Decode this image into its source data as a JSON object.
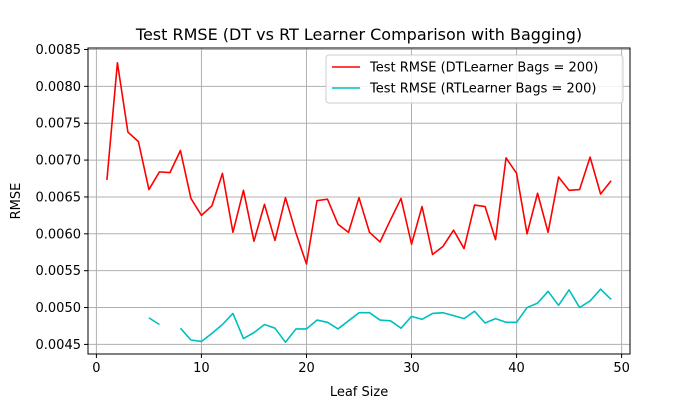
{
  "chart_data": {
    "type": "line",
    "title": "Test RMSE (DT vs RT Learner Comparison with Bagging)",
    "xlabel": "Leaf Size",
    "ylabel": "RMSE",
    "xlim": [
      -0.8,
      50.8
    ],
    "ylim": [
      0.00437,
      0.00852
    ],
    "xticks": [
      0,
      10,
      20,
      30,
      40,
      50
    ],
    "yticks": [
      0.0045,
      0.005,
      0.0055,
      0.006,
      0.0065,
      0.007,
      0.0075,
      0.008,
      0.0085
    ],
    "xtick_labels": [
      "0",
      "10",
      "20",
      "30",
      "40",
      "50"
    ],
    "ytick_labels": [
      "0.0045",
      "0.0050",
      "0.0055",
      "0.0060",
      "0.0065",
      "0.0070",
      "0.0075",
      "0.0080",
      "0.0085"
    ],
    "grid": true,
    "legend_position": "top-right",
    "series": [
      {
        "name": "Test RMSE (DTLearner Bags = 200)",
        "color": "#ff0000",
        "x": [
          1,
          2,
          3,
          4,
          5,
          6,
          7,
          8,
          9,
          10,
          11,
          12,
          13,
          14,
          15,
          16,
          17,
          18,
          19,
          20,
          21,
          22,
          23,
          24,
          25,
          26,
          27,
          28,
          29,
          30,
          31,
          32,
          33,
          34,
          35,
          36,
          37,
          38,
          39,
          40,
          41,
          42,
          43,
          44,
          45,
          46,
          47,
          48,
          49
        ],
        "y": [
          0.00673,
          0.00832,
          0.00738,
          0.00725,
          0.0066,
          0.00684,
          0.00683,
          0.00713,
          0.00648,
          0.00625,
          0.00638,
          0.00682,
          0.00602,
          0.00659,
          0.0059,
          0.0064,
          0.00591,
          0.00649,
          0.00601,
          0.00559,
          0.00645,
          0.00647,
          0.00613,
          0.00602,
          0.00649,
          0.00602,
          0.00589,
          0.00619,
          0.00648,
          0.00586,
          0.00637,
          0.00572,
          0.00583,
          0.00605,
          0.0058,
          0.00639,
          0.00637,
          0.00592,
          0.00703,
          0.00682,
          0.006,
          0.00655,
          0.00602,
          0.00677,
          0.00659,
          0.0066,
          0.00704,
          0.00654,
          0.00672
        ]
      },
      {
        "name": "Test RMSE (RTLearner Bags = 200)",
        "color": "#00bfbf",
        "x": [
          5,
          6,
          null,
          8,
          9,
          10,
          11,
          12,
          13,
          14,
          15,
          16,
          17,
          18,
          19,
          20,
          21,
          22,
          23,
          24,
          25,
          26,
          27,
          28,
          29,
          30,
          31,
          32,
          33,
          34,
          35,
          36,
          37,
          38,
          39,
          40,
          41,
          42,
          43,
          44,
          45,
          46,
          47,
          48,
          49
        ],
        "y": [
          0.00486,
          0.00477,
          null,
          0.00472,
          0.00456,
          0.00454,
          0.00465,
          0.00477,
          0.00492,
          0.00458,
          0.00466,
          0.00477,
          0.00472,
          0.00453,
          0.00471,
          0.00471,
          0.00483,
          0.0048,
          0.00471,
          0.00482,
          0.00493,
          0.00493,
          0.00483,
          0.00482,
          0.00472,
          0.00488,
          0.00484,
          0.00492,
          0.00493,
          0.00489,
          0.00485,
          0.00495,
          0.00479,
          0.00485,
          0.0048,
          0.0048,
          0.005,
          0.00506,
          0.00522,
          0.00503,
          0.00524,
          0.005,
          0.00509,
          0.00525,
          0.00511
        ]
      }
    ]
  }
}
